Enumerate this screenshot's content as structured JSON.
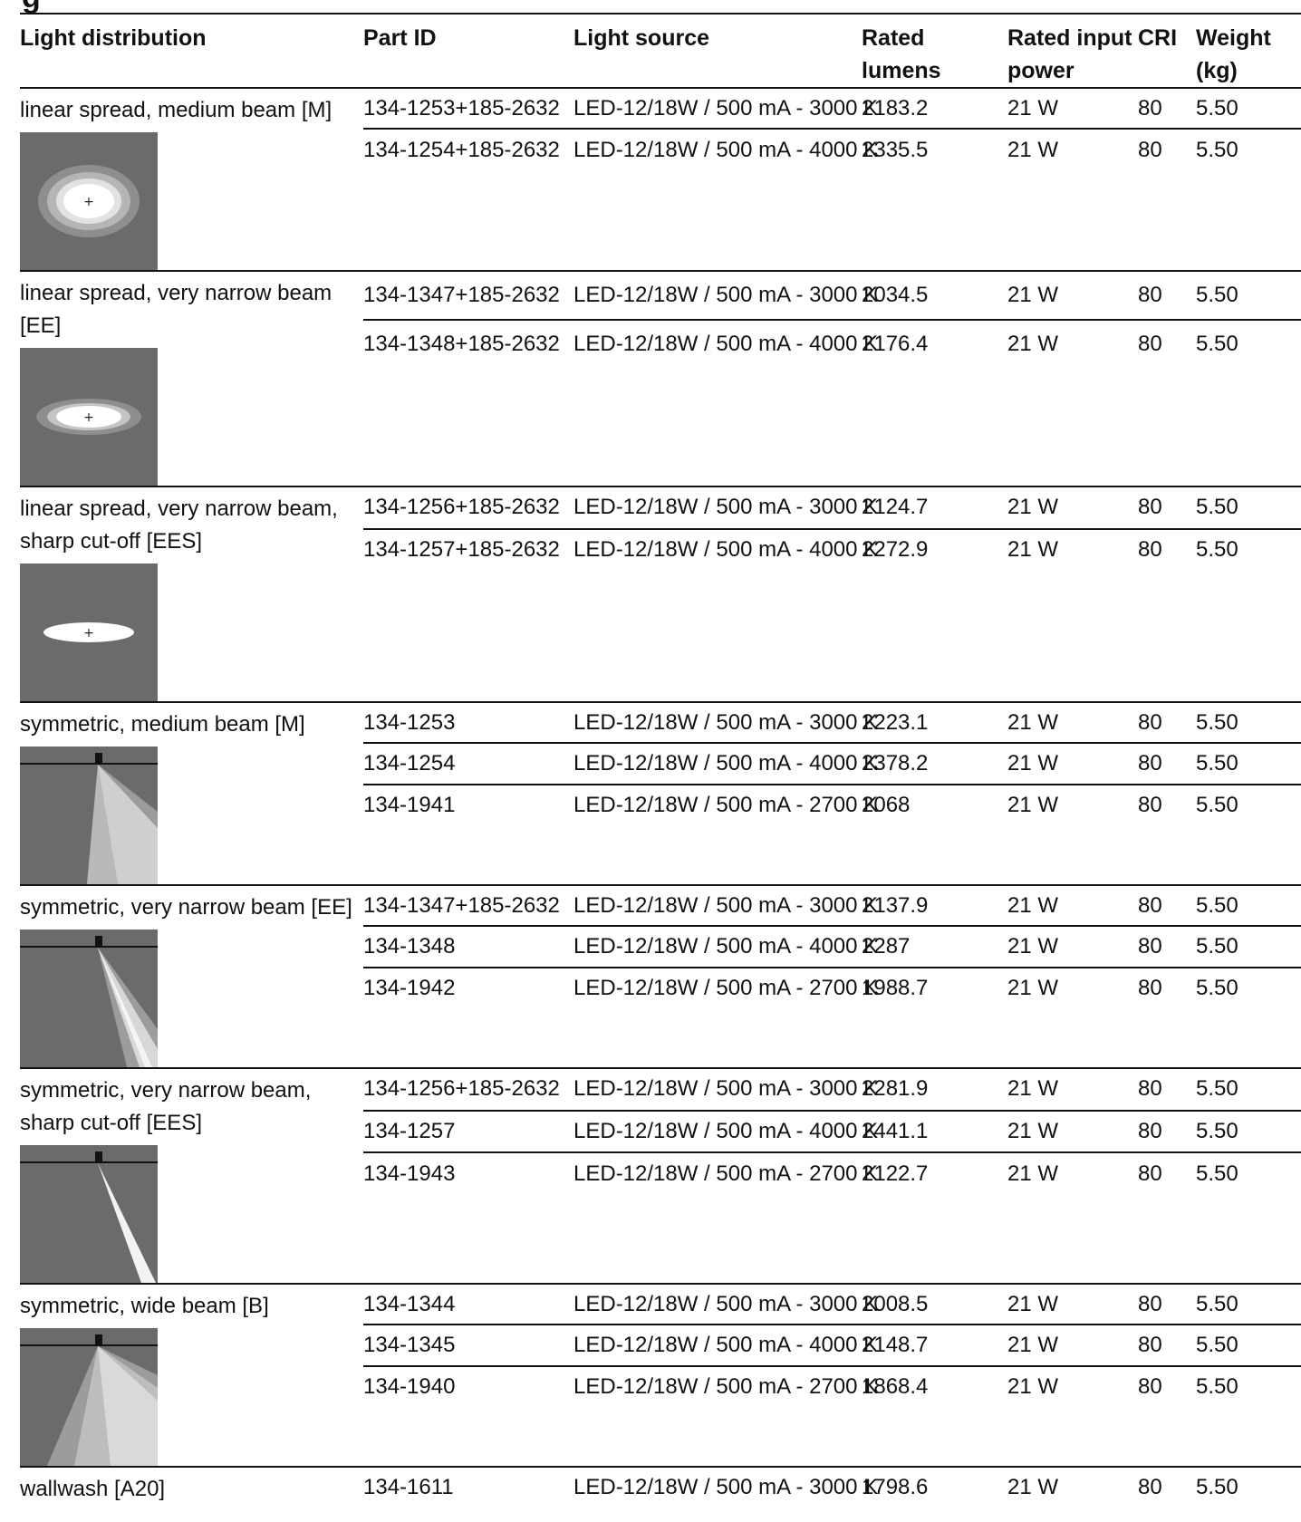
{
  "page_title_fragment": "g",
  "columns": [
    "Light distribution",
    "Part ID",
    "Light source",
    "Rated lumens",
    "Rated input power",
    "CRI",
    "Weight (kg)"
  ],
  "groups": [
    {
      "distribution": "linear spread, medium beam [M]",
      "icon": "ellipse-beam-medium-icon",
      "rows": [
        [
          "134-1253+185-2632",
          "LED-12/18W / 500 mA - 3000 K",
          "2183.2",
          "21 W",
          "80",
          "5.50"
        ],
        [
          "134-1254+185-2632",
          "LED-12/18W / 500 mA - 4000 K",
          "2335.5",
          "21 W",
          "80",
          "5.50"
        ]
      ]
    },
    {
      "distribution": "linear spread, very narrow beam [EE]",
      "icon": "ellipse-beam-narrow-icon",
      "rows": [
        [
          "134-1347+185-2632",
          "LED-12/18W / 500 mA - 3000 K",
          "2034.5",
          "21 W",
          "80",
          "5.50"
        ],
        [
          "134-1348+185-2632",
          "LED-12/18W / 500 mA - 4000 K",
          "2176.4",
          "21 W",
          "80",
          "5.50"
        ]
      ]
    },
    {
      "distribution": "linear spread, very narrow beam, sharp cut-off [EES]",
      "icon": "ellipse-beam-sharp-icon",
      "rows": [
        [
          "134-1256+185-2632",
          "LED-12/18W / 500 mA - 3000 K",
          "2124.7",
          "21 W",
          "80",
          "5.50"
        ],
        [
          "134-1257+185-2632",
          "LED-12/18W / 500 mA - 4000 K",
          "2272.9",
          "21 W",
          "80",
          "5.50"
        ]
      ]
    },
    {
      "distribution": "symmetric, medium beam [M]",
      "icon": "cone-beam-medium-icon",
      "rows": [
        [
          "134-1253",
          "LED-12/18W / 500 mA - 3000 K",
          "2223.1",
          "21 W",
          "80",
          "5.50"
        ],
        [
          "134-1254",
          "LED-12/18W / 500 mA - 4000 K",
          "2378.2",
          "21 W",
          "80",
          "5.50"
        ],
        [
          "134-1941",
          "LED-12/18W / 500 mA - 2700 K",
          "2068",
          "21 W",
          "80",
          "5.50"
        ]
      ]
    },
    {
      "distribution": "symmetric, very narrow beam [EE]",
      "icon": "cone-beam-narrow-icon",
      "rows": [
        [
          "134-1347+185-2632",
          "LED-12/18W / 500 mA - 3000 K",
          "2137.9",
          "21 W",
          "80",
          "5.50"
        ],
        [
          "134-1348",
          "LED-12/18W / 500 mA - 4000 K",
          "2287",
          "21 W",
          "80",
          "5.50"
        ],
        [
          "134-1942",
          "LED-12/18W / 500 mA - 2700 K",
          "1988.7",
          "21 W",
          "80",
          "5.50"
        ]
      ]
    },
    {
      "distribution": "symmetric, very narrow beam, sharp cut-off [EES]",
      "icon": "cone-beam-sharp-icon",
      "rows": [
        [
          "134-1256+185-2632",
          "LED-12/18W / 500 mA - 3000 K",
          "2281.9",
          "21 W",
          "80",
          "5.50"
        ],
        [
          "134-1257",
          "LED-12/18W / 500 mA - 4000 K",
          "2441.1",
          "21 W",
          "80",
          "5.50"
        ],
        [
          "134-1943",
          "LED-12/18W / 500 mA - 2700 K",
          "2122.7",
          "21 W",
          "80",
          "5.50"
        ]
      ]
    },
    {
      "distribution": "symmetric, wide beam [B]",
      "icon": "cone-beam-wide-icon",
      "rows": [
        [
          "134-1344",
          "LED-12/18W / 500 mA - 3000 K",
          "2008.5",
          "21 W",
          "80",
          "5.50"
        ],
        [
          "134-1345",
          "LED-12/18W / 500 mA - 4000 K",
          "2148.7",
          "21 W",
          "80",
          "5.50"
        ],
        [
          "134-1940",
          "LED-12/18W / 500 mA - 2700 K",
          "1868.4",
          "21 W",
          "80",
          "5.50"
        ]
      ]
    },
    {
      "distribution": "wallwash [A20]",
      "icon": "",
      "rows": [
        [
          "134-1611",
          "LED-12/18W / 500 mA - 3000 K",
          "1798.6",
          "21 W",
          "80",
          "5.50"
        ]
      ]
    }
  ],
  "colors": {
    "thumb_bg": "#6b6b6b",
    "rule": "#111111",
    "light": "#ffffff"
  }
}
